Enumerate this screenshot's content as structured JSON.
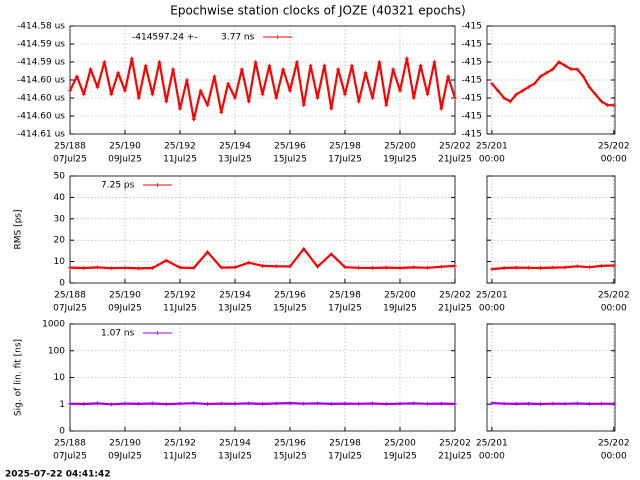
{
  "title": "Epochwise station clocks of JOZE (40321 epochs)",
  "timestamp": "2025-07-22 04:41:42",
  "chart_data": [
    {
      "type": "line",
      "legend_text": [
        "-414597.24 +-",
        "3.77 ns"
      ],
      "grid": true,
      "log_scale": false,
      "xlim": [
        188,
        202
      ],
      "xticks": [
        {
          "value": 188,
          "label": "25/188"
        },
        {
          "value": 190,
          "label": "25/190"
        },
        {
          "value": 192,
          "label": "25/192"
        },
        {
          "value": 194,
          "label": "25/194"
        },
        {
          "value": 196,
          "label": "25/196"
        },
        {
          "value": 198,
          "label": "25/198"
        },
        {
          "value": 200,
          "label": "25/200"
        },
        {
          "value": 202,
          "label": "25/202"
        }
      ],
      "xtick_dates": [
        "07Jul25",
        "09Jul25",
        "11Jul25",
        "13Jul25",
        "15Jul25",
        "17Jul25",
        "19Jul25",
        "21Jul25"
      ],
      "ylim": [
        -414.61,
        -414.58
      ],
      "yticks": [
        {
          "value": -414.58,
          "label": "-414.58 us"
        },
        {
          "value": -414.585,
          "label": "-414.59 us"
        },
        {
          "value": -414.59,
          "label": "-414.59 us"
        },
        {
          "value": -414.595,
          "label": "-414.60 us"
        },
        {
          "value": -414.6,
          "label": "-414.60 us"
        },
        {
          "value": -414.605,
          "label": "-414.60 us"
        },
        {
          "value": -414.61,
          "label": "-414.61 us"
        }
      ],
      "x": [
        188,
        188.25,
        188.5,
        188.75,
        189,
        189.25,
        189.5,
        189.75,
        190,
        190.25,
        190.5,
        190.75,
        191,
        191.25,
        191.5,
        191.75,
        192,
        192.25,
        192.5,
        192.75,
        193,
        193.25,
        193.5,
        193.75,
        194,
        194.25,
        194.5,
        194.75,
        195,
        195.25,
        195.5,
        195.75,
        196,
        196.25,
        196.5,
        196.75,
        197,
        197.25,
        197.5,
        197.75,
        198,
        198.25,
        198.5,
        198.75,
        199,
        199.25,
        199.5,
        199.75,
        200,
        200.25,
        200.5,
        200.75,
        201,
        201.25,
        201.5,
        201.75,
        202
      ],
      "series": [
        {
          "color": "#ff0000",
          "values": [
            -414.598,
            -414.594,
            -414.599,
            -414.592,
            -414.597,
            -414.59,
            -414.599,
            -414.593,
            -414.598,
            -414.589,
            -414.6,
            -414.591,
            -414.599,
            -414.59,
            -414.601,
            -414.592,
            -414.603,
            -414.595,
            -414.606,
            -414.598,
            -414.602,
            -414.594,
            -414.604,
            -414.596,
            -414.6,
            -414.592,
            -414.601,
            -414.59,
            -414.599,
            -414.591,
            -414.6,
            -414.592,
            -414.598,
            -414.59,
            -414.602,
            -414.591,
            -414.6,
            -414.591,
            -414.603,
            -414.592,
            -414.599,
            -414.591,
            -414.601,
            -414.593,
            -414.6,
            -414.59,
            -414.602,
            -414.592,
            -414.598,
            -414.589,
            -414.6,
            -414.591,
            -414.599,
            -414.59,
            -414.603,
            -414.594,
            -414.6
          ]
        }
      ]
    },
    {
      "type": "line",
      "grid": true,
      "log_scale": false,
      "xlim": [
        200.96,
        202.01
      ],
      "xticks": [
        {
          "value": 201,
          "label": "25/201"
        },
        {
          "value": 202,
          "label": "25/202"
        }
      ],
      "xtick_dates": [
        "00:00",
        "00:00"
      ],
      "ylim": [
        -414.61,
        -414.58
      ],
      "yticks": [
        {
          "value": -414.58,
          "label": "-415"
        },
        {
          "value": -414.585,
          "label": "-415"
        },
        {
          "value": -414.59,
          "label": "-415"
        },
        {
          "value": -414.595,
          "label": "-415"
        },
        {
          "value": -414.6,
          "label": "-415"
        },
        {
          "value": -414.605,
          "label": "-415"
        },
        {
          "value": -414.61,
          "label": "-415"
        }
      ],
      "x": [
        201,
        201.05,
        201.1,
        201.15,
        201.2,
        201.25,
        201.3,
        201.35,
        201.4,
        201.45,
        201.5,
        201.55,
        201.6,
        201.65,
        201.7,
        201.75,
        201.8,
        201.85,
        201.9,
        201.95,
        202
      ],
      "series": [
        {
          "color": "#ff0000",
          "values": [
            -414.596,
            -414.598,
            -414.6,
            -414.601,
            -414.599,
            -414.598,
            -414.597,
            -414.596,
            -414.594,
            -414.593,
            -414.592,
            -414.59,
            -414.591,
            -414.592,
            -414.592,
            -414.594,
            -414.597,
            -414.599,
            -414.601,
            -414.602,
            -414.602
          ]
        }
      ]
    },
    {
      "type": "line",
      "ylabel": "RMS [ps]",
      "legend_text": [
        "7.25 ps"
      ],
      "grid": true,
      "log_scale": false,
      "xlim": [
        188,
        202
      ],
      "xticks": [
        {
          "value": 188,
          "label": "25/188"
        },
        {
          "value": 190,
          "label": "25/190"
        },
        {
          "value": 192,
          "label": "25/192"
        },
        {
          "value": 194,
          "label": "25/194"
        },
        {
          "value": 196,
          "label": "25/196"
        },
        {
          "value": 198,
          "label": "25/198"
        },
        {
          "value": 200,
          "label": "25/200"
        },
        {
          "value": 202,
          "label": "25/202"
        }
      ],
      "xtick_dates": [
        "07Jul25",
        "09Jul25",
        "11Jul25",
        "13Jul25",
        "15Jul25",
        "17Jul25",
        "19Jul25",
        "21Jul25"
      ],
      "ylim": [
        0,
        50
      ],
      "yticks": [
        0,
        10,
        20,
        30,
        40,
        50
      ],
      "x": [
        188,
        188.5,
        189,
        189.5,
        190,
        190.5,
        191,
        191.5,
        192,
        192.5,
        193,
        193.5,
        194,
        194.5,
        195,
        195.5,
        196,
        196.5,
        197,
        197.5,
        198,
        198.5,
        199,
        199.5,
        200,
        200.5,
        201,
        201.5,
        202
      ],
      "series": [
        {
          "color": "#ff0000",
          "values": [
            7.2,
            7.0,
            7.3,
            6.9,
            7.1,
            6.8,
            7.0,
            10.5,
            7.2,
            7.0,
            14.5,
            7.2,
            7.3,
            9.5,
            8.0,
            7.8,
            7.7,
            16.0,
            7.6,
            13.5,
            7.4,
            7.1,
            7.0,
            7.2,
            7.0,
            7.3,
            7.1,
            7.6,
            8.0
          ]
        }
      ]
    },
    {
      "type": "line",
      "grid": true,
      "log_scale": false,
      "xlim": [
        200.96,
        202.01
      ],
      "xticks": [
        {
          "value": 201,
          "label": "25/201"
        },
        {
          "value": 202,
          "label": "25/202"
        }
      ],
      "xtick_dates": [
        "00:00",
        "00:00"
      ],
      "ylim": [
        0,
        50
      ],
      "ytick_marks": [
        0,
        10,
        20,
        30,
        40,
        50
      ],
      "x": [
        201,
        201.1,
        201.2,
        201.3,
        201.4,
        201.5,
        201.6,
        201.7,
        201.8,
        201.9,
        202
      ],
      "series": [
        {
          "color": "#ff0000",
          "values": [
            6.5,
            7.0,
            7.2,
            7.1,
            7.0,
            7.2,
            7.3,
            7.8,
            7.4,
            8.0,
            8.2
          ]
        }
      ]
    },
    {
      "type": "line",
      "ylabel": "Sig. of lin. fit [ns]",
      "legend_text": [
        "1.07 ns"
      ],
      "grid": true,
      "log_scale": true,
      "xlim": [
        188,
        202
      ],
      "xticks": [
        {
          "value": 188,
          "label": "25/188"
        },
        {
          "value": 190,
          "label": "25/190"
        },
        {
          "value": 192,
          "label": "25/192"
        },
        {
          "value": 194,
          "label": "25/194"
        },
        {
          "value": 196,
          "label": "25/196"
        },
        {
          "value": 198,
          "label": "25/198"
        },
        {
          "value": 200,
          "label": "25/200"
        },
        {
          "value": 202,
          "label": "25/202"
        }
      ],
      "xtick_dates": [
        "07Jul25",
        "09Jul25",
        "11Jul25",
        "13Jul25",
        "15Jul25",
        "17Jul25",
        "19Jul25",
        "21Jul25"
      ],
      "ylim": [
        0.1,
        1000
      ],
      "yticks": [
        {
          "value": 0.1,
          "label": "0"
        },
        1,
        10,
        100,
        1000
      ],
      "x": [
        188,
        188.5,
        189,
        189.5,
        190,
        190.5,
        191,
        191.5,
        192,
        192.5,
        193,
        193.5,
        194,
        194.5,
        195,
        195.5,
        196,
        196.5,
        197,
        197.5,
        198,
        198.5,
        199,
        199.5,
        200,
        200.5,
        201,
        201.5,
        202
      ],
      "series": [
        {
          "color": "#a000e0",
          "values": [
            1.05,
            1.02,
            1.08,
            1.0,
            1.06,
            1.03,
            1.07,
            1.01,
            1.05,
            1.09,
            1.02,
            1.06,
            1.04,
            1.08,
            1.03,
            1.07,
            1.1,
            1.05,
            1.08,
            1.03,
            1.06,
            1.04,
            1.07,
            1.02,
            1.05,
            1.08,
            1.04,
            1.06,
            1.03
          ]
        }
      ]
    },
    {
      "type": "line",
      "grid": true,
      "log_scale": true,
      "xlim": [
        200.96,
        202.01
      ],
      "xticks": [
        {
          "value": 201,
          "label": "25/201"
        },
        {
          "value": 202,
          "label": "25/202"
        }
      ],
      "xtick_dates": [
        "00:00",
        "00:00"
      ],
      "ylim": [
        0.1,
        1000
      ],
      "ytick_marks": [
        0.1,
        1,
        10,
        100,
        1000
      ],
      "x": [
        201,
        201.1,
        201.2,
        201.3,
        201.4,
        201.5,
        201.6,
        201.7,
        201.8,
        201.9,
        202
      ],
      "series": [
        {
          "color": "#a000e0",
          "values": [
            1.1,
            1.05,
            1.03,
            1.06,
            1.02,
            1.05,
            1.04,
            1.07,
            1.03,
            1.05,
            1.04
          ]
        }
      ]
    }
  ]
}
